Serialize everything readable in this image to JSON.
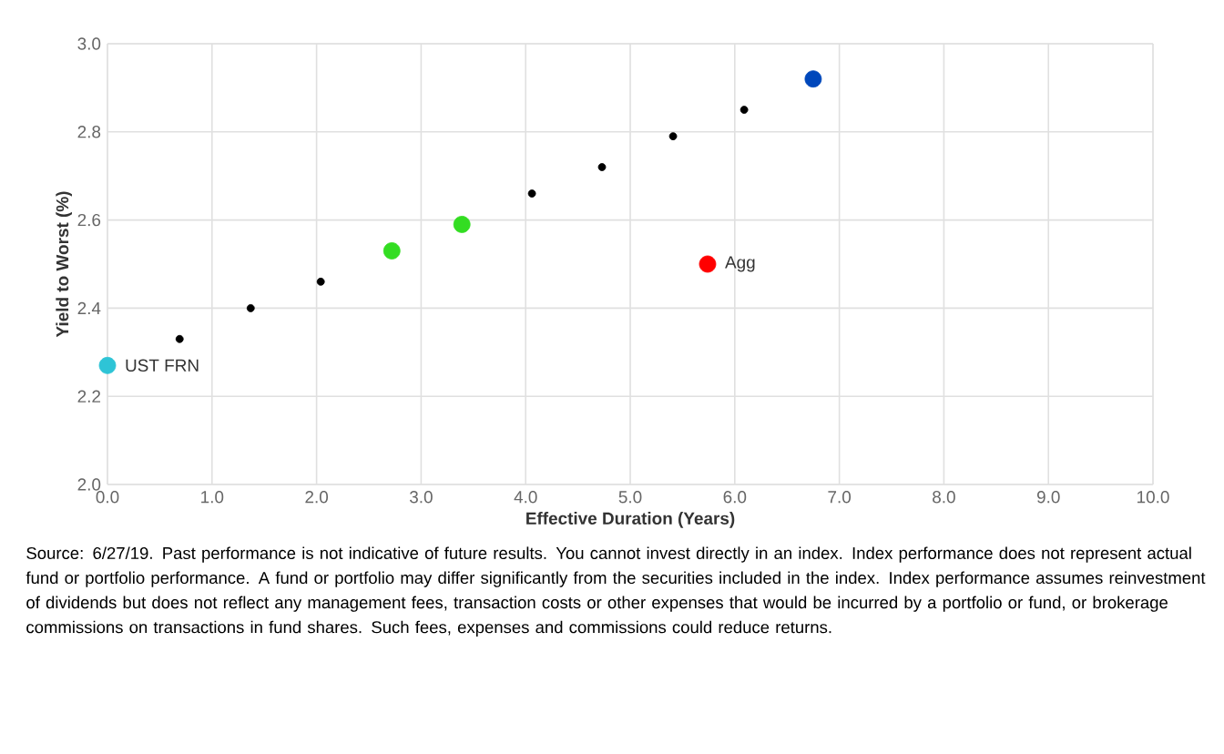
{
  "chart_data": {
    "type": "scatter",
    "xlabel": "Effective Duration (Years)",
    "ylabel": "Yield to Worst (%)",
    "xlim": [
      0,
      10
    ],
    "ylim": [
      2.0,
      3.0
    ],
    "xticks": [
      {
        "value": 0,
        "label": "0.0"
      },
      {
        "value": 1,
        "label": "1.0"
      },
      {
        "value": 2,
        "label": "2.0"
      },
      {
        "value": 3,
        "label": "3.0"
      },
      {
        "value": 4,
        "label": "4.0"
      },
      {
        "value": 5,
        "label": "5.0"
      },
      {
        "value": 6,
        "label": "6.0"
      },
      {
        "value": 7,
        "label": "7.0"
      },
      {
        "value": 8,
        "label": "8.0"
      },
      {
        "value": 9,
        "label": "9.0"
      },
      {
        "value": 10,
        "label": "10.0"
      }
    ],
    "yticks": [
      {
        "value": 2.0,
        "label": "2.0"
      },
      {
        "value": 2.2,
        "label": "2.2"
      },
      {
        "value": 2.4,
        "label": "2.4"
      },
      {
        "value": 2.6,
        "label": "2.6"
      },
      {
        "value": 2.8,
        "label": "2.8"
      },
      {
        "value": 3.0,
        "label": "3.0"
      }
    ],
    "grid": true,
    "series": [
      {
        "color": "#000000",
        "x": [
          0.69,
          1.37,
          2.04,
          4.06,
          4.73,
          5.41,
          6.09
        ],
        "values": [
          2.33,
          2.4,
          2.46,
          2.66,
          2.72,
          2.79,
          2.85
        ]
      },
      {
        "color": "#33dd22",
        "x": [
          2.72,
          3.39
        ],
        "values": [
          2.53,
          2.59
        ]
      },
      {
        "name": "UST FRN",
        "color": "#2ec4d6",
        "x": [
          0.0
        ],
        "values": [
          2.27
        ]
      },
      {
        "color": "#0047bb",
        "x": [
          6.75
        ],
        "values": [
          2.92
        ]
      },
      {
        "name": "Agg",
        "color": "#ff0000",
        "x": [
          5.74
        ],
        "values": [
          2.5
        ]
      }
    ],
    "annotations": [
      "Source: 6/27/19. Past performance is not indicative of future results. You cannot invest directly in an index. Index performance does not represent actual fund or portfolio performance. A fund or portfolio may differ significantly from the securities included in the index. Index performance assumes reinvestment of dividends but does not reflect any management fees, transaction costs or other expenses that would be incurred by a portfolio or fund, or brokerage commissions on transactions in fund shares. Such fees, expenses and commissions could reduce returns."
    ]
  }
}
